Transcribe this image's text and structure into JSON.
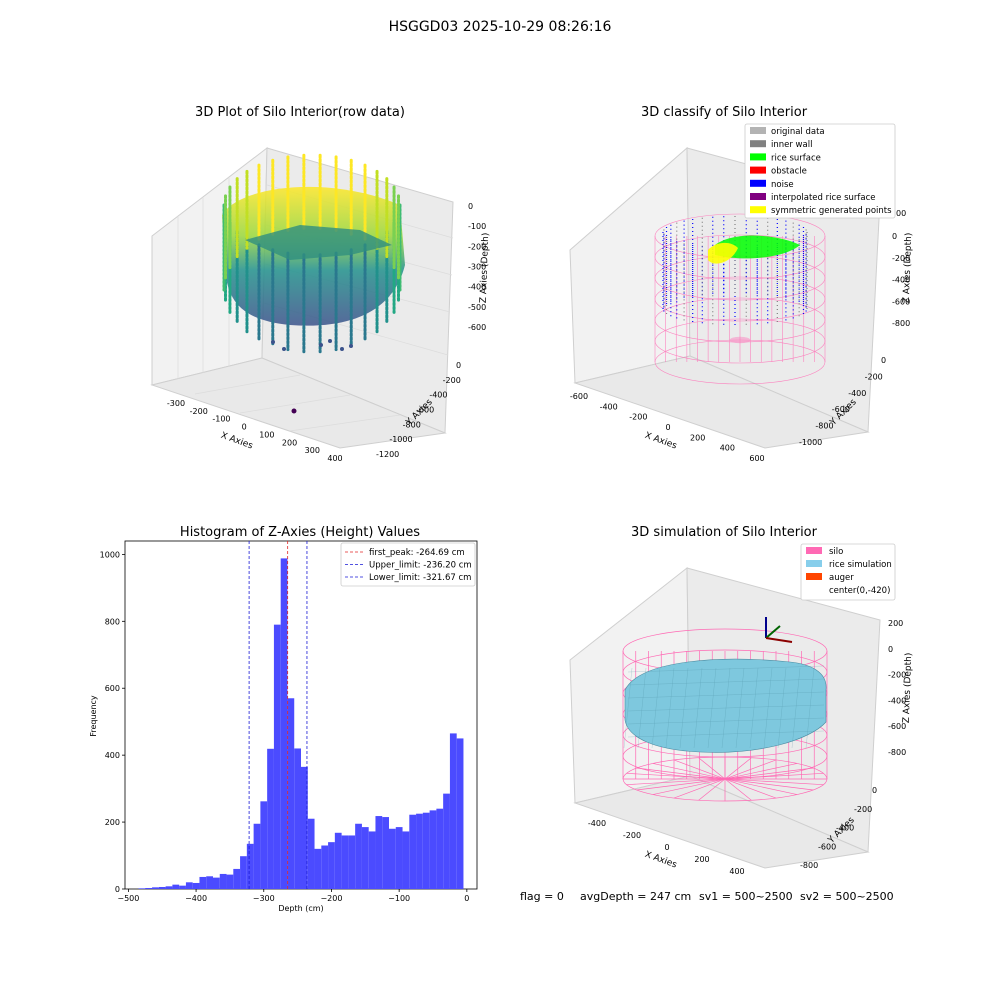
{
  "figure": {
    "title": "HSGGD03 2025-10-29 08:26:16",
    "footer": {
      "flag": "flag = 0",
      "avg_depth": "avgDepth = 247 cm",
      "sv1": "sv1 = 500~2500",
      "sv2": "sv2 = 500~2500"
    }
  },
  "chart_data": [
    {
      "type": "scatter",
      "title": "3D Plot of Silo Interior(row data)",
      "xlabel": "X Axies",
      "ylabel": "Y Axies",
      "zlabel": "Z Axies (Depth)",
      "x_ticks": [
        "-300",
        "-200",
        "-100",
        "0",
        "100",
        "200",
        "300",
        "400"
      ],
      "y_ticks": [
        "0",
        "-200",
        "-400",
        "-600",
        "-800",
        "-1000",
        "-1200"
      ],
      "z_ticks": [
        "0",
        "-100",
        "-200",
        "-300",
        "-400",
        "-500",
        "-600"
      ],
      "colors": {
        "high": "#fde725",
        "mid": "#21918c",
        "low": "#3b528b",
        "outlier": "#440154"
      }
    },
    {
      "type": "scatter",
      "title": "3D classify of Silo Interior",
      "xlabel": "X Axies",
      "ylabel": "Y Axies",
      "zlabel": "Z Axies (Depth)",
      "x_ticks": [
        "-600",
        "-400",
        "-200",
        "0",
        "200",
        "400",
        "600"
      ],
      "y_ticks": [
        "0",
        "-200",
        "-400",
        "-600",
        "-800",
        "-1000"
      ],
      "z_ticks": [
        "0",
        "-200",
        "-400",
        "-600",
        "-800"
      ],
      "z_partial_tick": "00",
      "legend": [
        {
          "label": "original data",
          "color": "#b3b3b3"
        },
        {
          "label": "inner wall",
          "color": "#808080"
        },
        {
          "label": "rice surface",
          "color": "#00ff00"
        },
        {
          "label": "obstacle",
          "color": "#ff0000"
        },
        {
          "label": "noise",
          "color": "#0000ff"
        },
        {
          "label": "interpolated rice surface",
          "color": "#800080"
        },
        {
          "label": "symmetric generated points",
          "color": "#ffff00"
        }
      ],
      "legend_position": "top-right",
      "colors": {
        "cylinder": "#ff69b4"
      }
    },
    {
      "type": "bar",
      "title": "Histogram of Z-Axies (Height) Values",
      "xlabel": "Depth (cm)",
      "ylabel": "Frequency",
      "xlim": [
        -505,
        15
      ],
      "ylim": [
        0,
        1040
      ],
      "bin_start": -485,
      "bin_width": 10,
      "values": [
        2,
        3,
        5,
        6,
        8,
        13,
        10,
        20,
        18,
        36,
        38,
        34,
        45,
        43,
        60,
        98,
        135,
        195,
        262,
        419,
        790,
        988,
        570,
        420,
        365,
        210,
        120,
        130,
        140,
        168,
        160,
        160,
        195,
        185,
        172,
        218,
        215,
        180,
        185,
        172,
        222,
        225,
        228,
        235,
        240,
        285,
        465,
        450
      ],
      "x_ticks": [
        -500,
        -400,
        -300,
        -200,
        -100,
        0
      ],
      "x_tick_labels": [
        "−500",
        "−400",
        "−300",
        "−200",
        "−100",
        "0"
      ],
      "y_ticks": [
        0,
        200,
        400,
        600,
        800,
        1000
      ],
      "y_tick_labels": [
        "0",
        "200",
        "400",
        "600",
        "800",
        "1000"
      ],
      "bar_color": "#4b4bff",
      "lines": [
        {
          "x": -264.69,
          "color": "#e32626",
          "label": "first_peak: -264.69 cm"
        },
        {
          "x": -236.2,
          "color": "#1a1ad6",
          "label": "Upper_limit: -236.20 cm"
        },
        {
          "x": -321.67,
          "color": "#1a1ad6",
          "label": "Lower_limit: -321.67 cm"
        }
      ],
      "legend_position": "top-right"
    },
    {
      "type": "scatter",
      "title": "3D simulation of Silo Interior",
      "xlabel": "X Axies",
      "ylabel": "Y Axies",
      "zlabel": "Z Axies (Depth)",
      "x_ticks": [
        "-400",
        "-200",
        "0",
        "200",
        "400"
      ],
      "y_ticks": [
        "0",
        "-200",
        "-400",
        "-600",
        "-800"
      ],
      "z_ticks": [
        "200",
        "0",
        "-200",
        "-400",
        "-600",
        "-800"
      ],
      "legend": [
        {
          "label": "silo",
          "color": "#ff69b4"
        },
        {
          "label": "rice simulation",
          "color": "#87ceeb"
        },
        {
          "label": "auger",
          "color": "#ff4500"
        },
        {
          "label": "center(0,-420)",
          "color": "#ffffff"
        }
      ],
      "legend_position": "top-right"
    }
  ]
}
